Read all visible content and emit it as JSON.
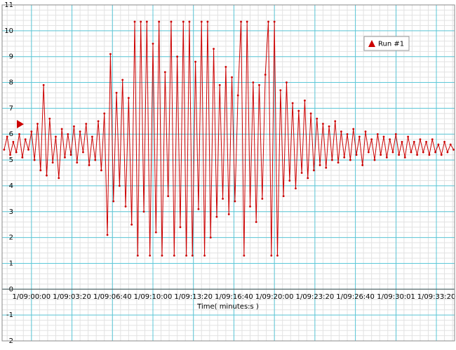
{
  "chart_data": {
    "type": "line",
    "xlabel": "Time( minutes:s )",
    "xlim": [
      -145,
      2090
    ],
    "ylim": [
      -2,
      11
    ],
    "xticks": [
      {
        "value": 0,
        "label": "1/09:00:00"
      },
      {
        "value": 200,
        "label": "1/09:03:20"
      },
      {
        "value": 400,
        "label": "1/09:06:40"
      },
      {
        "value": 600,
        "label": "1/09:10:00"
      },
      {
        "value": 800,
        "label": "1/09:13:20"
      },
      {
        "value": 1000,
        "label": "1/09:16:40"
      },
      {
        "value": 1200,
        "label": "1/09:20:00"
      },
      {
        "value": 1400,
        "label": "1/09:23:20"
      },
      {
        "value": 1600,
        "label": "1/09:26:40"
      },
      {
        "value": 1801,
        "label": "1/09:30:01"
      },
      {
        "value": 2000,
        "label": "1/09:33:20"
      }
    ],
    "yticks": [
      -2,
      -1,
      0,
      1,
      2,
      3,
      4,
      5,
      6,
      7,
      8,
      9,
      10,
      11
    ],
    "grid": true,
    "legend": "top-right",
    "x": [
      -135,
      -120,
      -105,
      -90,
      -75,
      -60,
      -45,
      -30,
      -15,
      0,
      15,
      30,
      45,
      60,
      75,
      90,
      105,
      120,
      135,
      150,
      165,
      180,
      195,
      210,
      225,
      240,
      255,
      270,
      285,
      300,
      315,
      330,
      345,
      360,
      375,
      390,
      405,
      420,
      435,
      450,
      465,
      480,
      495,
      510,
      525,
      540,
      555,
      570,
      585,
      600,
      615,
      630,
      645,
      660,
      675,
      690,
      705,
      720,
      735,
      750,
      765,
      780,
      795,
      810,
      825,
      840,
      855,
      870,
      885,
      900,
      915,
      930,
      945,
      960,
      975,
      990,
      1005,
      1020,
      1035,
      1050,
      1065,
      1080,
      1095,
      1110,
      1125,
      1140,
      1155,
      1170,
      1185,
      1200,
      1215,
      1230,
      1245,
      1260,
      1275,
      1290,
      1305,
      1320,
      1335,
      1350,
      1365,
      1380,
      1395,
      1410,
      1425,
      1440,
      1455,
      1470,
      1485,
      1500,
      1515,
      1530,
      1545,
      1560,
      1575,
      1590,
      1605,
      1620,
      1635,
      1650,
      1665,
      1680,
      1695,
      1710,
      1725,
      1740,
      1755,
      1770,
      1785,
      1800,
      1815,
      1830,
      1845,
      1860,
      1875,
      1890,
      1905,
      1920,
      1935,
      1950,
      1965,
      1980,
      1995,
      2010,
      2025,
      2040,
      2055,
      2070,
      2085
    ],
    "series": [
      {
        "name": "Run #1",
        "color": "#cc0000",
        "values": [
          5.4,
          5.9,
          5.2,
          5.7,
          5.3,
          6.0,
          5.1,
          5.8,
          5.4,
          6.1,
          5.0,
          6.4,
          4.6,
          7.9,
          4.4,
          6.6,
          4.9,
          5.9,
          4.3,
          6.2,
          5.1,
          6.0,
          5.2,
          6.3,
          4.9,
          6.1,
          5.3,
          6.4,
          4.8,
          5.9,
          5.0,
          6.5,
          4.6,
          6.8,
          2.1,
          9.1,
          3.4,
          7.6,
          4.0,
          8.1,
          3.2,
          7.4,
          2.5,
          10.35,
          1.3,
          10.35,
          3.0,
          10.35,
          1.3,
          9.5,
          2.2,
          10.35,
          1.3,
          8.4,
          3.6,
          10.35,
          1.3,
          9.0,
          2.4,
          10.35,
          1.3,
          10.35,
          1.3,
          8.8,
          3.1,
          10.35,
          1.3,
          10.35,
          2.0,
          9.3,
          2.8,
          7.9,
          3.5,
          8.6,
          2.9,
          8.2,
          3.4,
          7.5,
          10.35,
          1.3,
          10.35,
          3.2,
          8.0,
          2.6,
          7.9,
          3.5,
          8.3,
          10.35,
          1.3,
          10.35,
          1.3,
          7.7,
          3.6,
          8.0,
          4.2,
          7.2,
          3.9,
          6.9,
          4.5,
          7.3,
          4.3,
          6.8,
          4.6,
          6.6,
          4.8,
          6.4,
          4.7,
          6.3,
          5.0,
          6.5,
          4.9,
          6.1,
          5.1,
          6.0,
          5.0,
          6.2,
          5.2,
          5.9,
          4.8,
          6.1,
          5.3,
          5.8,
          5.0,
          6.0,
          5.2,
          5.9,
          5.1,
          5.8,
          5.3,
          6.0,
          5.2,
          5.7,
          5.1,
          5.9,
          5.3,
          5.7,
          5.2,
          5.8,
          5.3,
          5.7,
          5.2,
          5.8,
          5.3,
          5.6,
          5.2,
          5.7,
          5.3,
          5.6,
          5.4
        ]
      }
    ]
  }
}
